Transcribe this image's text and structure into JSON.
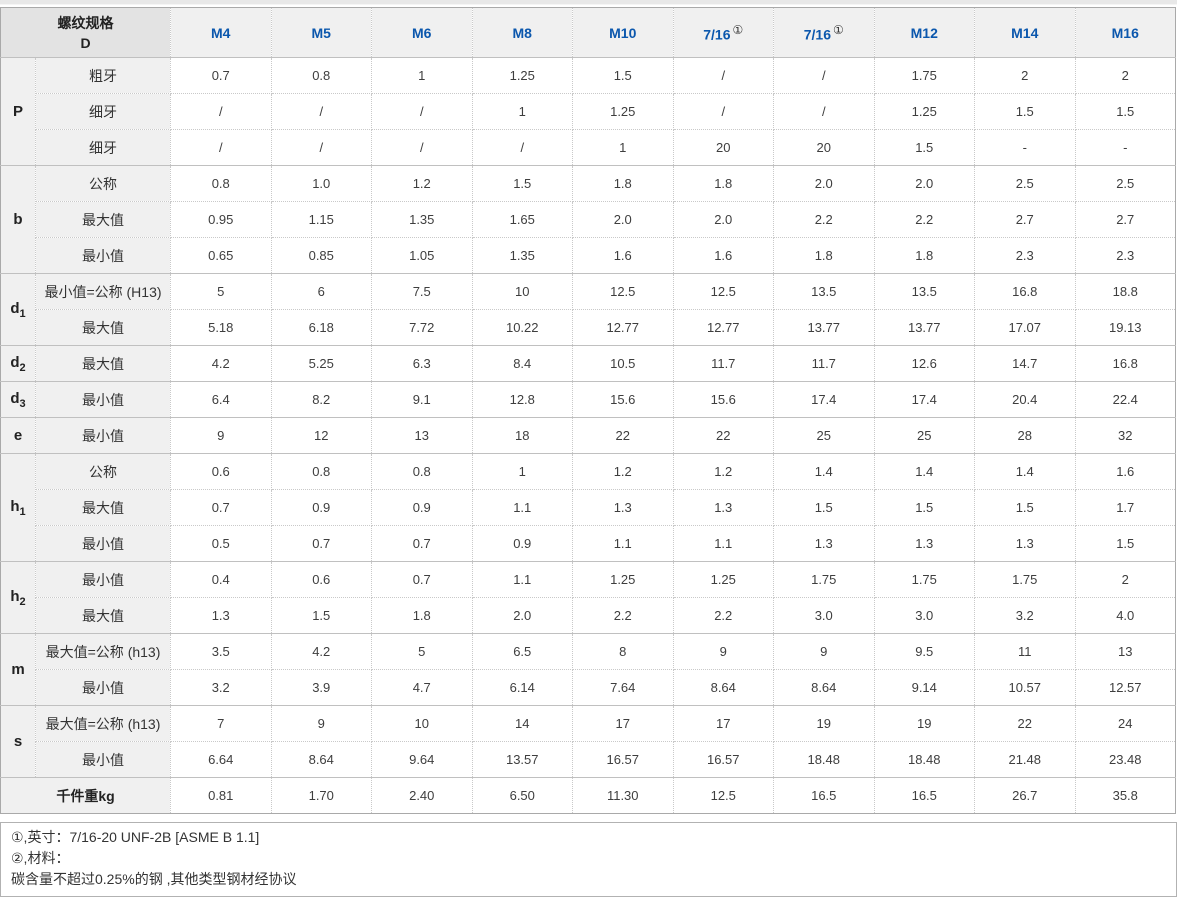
{
  "accent_color": "#0b57ad",
  "header": {
    "corner_label_line1": "螺纹规格",
    "corner_label_line2": "D",
    "columns": [
      {
        "label": "M4",
        "sup": ""
      },
      {
        "label": "M5",
        "sup": ""
      },
      {
        "label": "M6",
        "sup": ""
      },
      {
        "label": "M8",
        "sup": ""
      },
      {
        "label": "M10",
        "sup": ""
      },
      {
        "label": "7/16",
        "sup": "①"
      },
      {
        "label": "7/16",
        "sup": "①"
      },
      {
        "label": "M12",
        "sup": ""
      },
      {
        "label": "M14",
        "sup": ""
      },
      {
        "label": "M16",
        "sup": ""
      }
    ]
  },
  "groups": [
    {
      "label": "P",
      "sub": "",
      "rows": [
        {
          "name": "粗牙",
          "values": [
            "0.7",
            "0.8",
            "1",
            "1.25",
            "1.5",
            "/",
            "/",
            "1.75",
            "2",
            "2"
          ]
        },
        {
          "name": "细牙",
          "values": [
            "/",
            "/",
            "/",
            "1",
            "1.25",
            "/",
            "/",
            "1.25",
            "1.5",
            "1.5"
          ]
        },
        {
          "name": "细牙",
          "values": [
            "/",
            "/",
            "/",
            "/",
            "1",
            "20",
            "20",
            "1.5",
            "-",
            "-"
          ]
        }
      ]
    },
    {
      "label": "b",
      "sub": "",
      "rows": [
        {
          "name": "公称",
          "values": [
            "0.8",
            "1.0",
            "1.2",
            "1.5",
            "1.8",
            "1.8",
            "2.0",
            "2.0",
            "2.5",
            "2.5"
          ]
        },
        {
          "name": "最大值",
          "values": [
            "0.95",
            "1.15",
            "1.35",
            "1.65",
            "2.0",
            "2.0",
            "2.2",
            "2.2",
            "2.7",
            "2.7"
          ]
        },
        {
          "name": "最小值",
          "values": [
            "0.65",
            "0.85",
            "1.05",
            "1.35",
            "1.6",
            "1.6",
            "1.8",
            "1.8",
            "2.3",
            "2.3"
          ]
        }
      ]
    },
    {
      "label": "d",
      "sub": "1",
      "rows": [
        {
          "name": "最小值=公称 (H13)",
          "values": [
            "5",
            "6",
            "7.5",
            "10",
            "12.5",
            "12.5",
            "13.5",
            "13.5",
            "16.8",
            "18.8"
          ]
        },
        {
          "name": "最大值",
          "values": [
            "5.18",
            "6.18",
            "7.72",
            "10.22",
            "12.77",
            "12.77",
            "13.77",
            "13.77",
            "17.07",
            "19.13"
          ]
        }
      ]
    },
    {
      "label": "d",
      "sub": "2",
      "rows": [
        {
          "name": "最大值",
          "values": [
            "4.2",
            "5.25",
            "6.3",
            "8.4",
            "10.5",
            "11.7",
            "11.7",
            "12.6",
            "14.7",
            "16.8"
          ]
        }
      ]
    },
    {
      "label": "d",
      "sub": "3",
      "rows": [
        {
          "name": "最小值",
          "values": [
            "6.4",
            "8.2",
            "9.1",
            "12.8",
            "15.6",
            "15.6",
            "17.4",
            "17.4",
            "20.4",
            "22.4"
          ]
        }
      ]
    },
    {
      "label": "e",
      "sub": "",
      "rows": [
        {
          "name": "最小值",
          "values": [
            "9",
            "12",
            "13",
            "18",
            "22",
            "22",
            "25",
            "25",
            "28",
            "32"
          ]
        }
      ]
    },
    {
      "label": "h",
      "sub": "1",
      "rows": [
        {
          "name": "公称",
          "values": [
            "0.6",
            "0.8",
            "0.8",
            "1",
            "1.2",
            "1.2",
            "1.4",
            "1.4",
            "1.4",
            "1.6"
          ]
        },
        {
          "name": "最大值",
          "values": [
            "0.7",
            "0.9",
            "0.9",
            "1.1",
            "1.3",
            "1.3",
            "1.5",
            "1.5",
            "1.5",
            "1.7"
          ]
        },
        {
          "name": "最小值",
          "values": [
            "0.5",
            "0.7",
            "0.7",
            "0.9",
            "1.1",
            "1.1",
            "1.3",
            "1.3",
            "1.3",
            "1.5"
          ]
        }
      ]
    },
    {
      "label": "h",
      "sub": "2",
      "rows": [
        {
          "name": "最小值",
          "values": [
            "0.4",
            "0.6",
            "0.7",
            "1.1",
            "1.25",
            "1.25",
            "1.75",
            "1.75",
            "1.75",
            "2"
          ]
        },
        {
          "name": "最大值",
          "values": [
            "1.3",
            "1.5",
            "1.8",
            "2.0",
            "2.2",
            "2.2",
            "3.0",
            "3.0",
            "3.2",
            "4.0"
          ]
        }
      ]
    },
    {
      "label": "m",
      "sub": "",
      "rows": [
        {
          "name": "最大值=公称 (h13)",
          "values": [
            "3.5",
            "4.2",
            "5",
            "6.5",
            "8",
            "9",
            "9",
            "9.5",
            "11",
            "13"
          ]
        },
        {
          "name": "最小值",
          "values": [
            "3.2",
            "3.9",
            "4.7",
            "6.14",
            "7.64",
            "8.64",
            "8.64",
            "9.14",
            "10.57",
            "12.57"
          ]
        }
      ]
    },
    {
      "label": "s",
      "sub": "",
      "rows": [
        {
          "name": "最大值=公称 (h13)",
          "values": [
            "7",
            "9",
            "10",
            "14",
            "17",
            "17",
            "19",
            "19",
            "22",
            "24"
          ]
        },
        {
          "name": "最小值",
          "values": [
            "6.64",
            "8.64",
            "9.64",
            "13.57",
            "16.57",
            "16.57",
            "18.48",
            "18.48",
            "21.48",
            "23.48"
          ]
        }
      ]
    }
  ],
  "weight_row": {
    "label": "千件重kg",
    "values": [
      "0.81",
      "1.70",
      "2.40",
      "6.50",
      "11.30",
      "12.5",
      "16.5",
      "16.5",
      "26.7",
      "35.8"
    ]
  },
  "footnotes": [
    "①,英寸：7/16-20 UNF-2B [ASME B 1.1]",
    "②,材料：",
    "碳含量不超过0.25%的钢 ,其他类型钢材经协议"
  ]
}
